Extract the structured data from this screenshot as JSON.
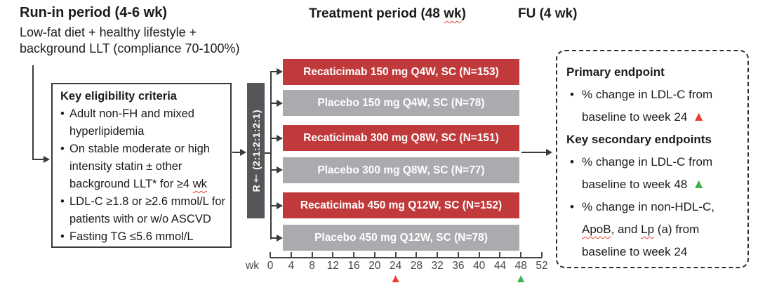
{
  "palette": {
    "arm_active": "#c13a3b",
    "arm_placebo": "#a9abae",
    "randomization": "#555659",
    "marker_red": "#ee3b2e",
    "marker_green": "#3bb54a",
    "line": "#3b3b3d",
    "text": "#1b1b1d",
    "axis_text": "#47474a",
    "squiggle": "#e3432f",
    "bar_text": "#ffffff"
  },
  "icons": {
    "triangle_up": "▲",
    "bullet": "•"
  },
  "header": {
    "runin_title": "Run-in period (4-6 wk)",
    "runin_sub1": "Low-fat diet + healthy lifestyle +",
    "runin_sub2": "background LLT (compliance 70-100%)",
    "treatment_pre": "Treatment period (48 ",
    "treatment_wk": "wk",
    "treatment_post": ")",
    "fu_title": "FU (4 wk)"
  },
  "eligibility": {
    "title": "Key eligibility criteria",
    "rows": [
      {
        "bullet": true,
        "text": "Adult non-FH and mixed"
      },
      {
        "bullet": false,
        "text": "hyperlipidemia"
      },
      {
        "bullet": true,
        "text": "On stable moderate or high"
      },
      {
        "bullet": false,
        "text": "intensity statin ± other"
      },
      {
        "bullet": false,
        "pre": "background LLT* for ≥4 ",
        "wavy": "wk"
      },
      {
        "bullet": true,
        "text": "LDL-C ≥1.8 or ≥2.6 mmol/L for"
      },
      {
        "bullet": false,
        "text": "patients with or w/o ASCVD"
      },
      {
        "bullet": true,
        "text": "Fasting TG ≤5.6 mmol/L"
      }
    ]
  },
  "randomization": {
    "label": "R† (2:1:2:1:2:1)"
  },
  "arms": [
    {
      "label": "Recaticimab 150 mg Q4W, SC (N=153)",
      "type": "active"
    },
    {
      "label": "Placebo 150 mg Q4W, SC (N=78)",
      "type": "placebo"
    },
    {
      "label": "Recaticimab 300 mg Q8W, SC (N=151)",
      "type": "active"
    },
    {
      "label": "Placebo 300 mg Q8W, SC (N=77)",
      "type": "placebo"
    },
    {
      "label": "Recaticimab 450 mg Q12W, SC (N=152)",
      "type": "active"
    },
    {
      "label": "Placebo 450 mg Q12W, SC (N=78)",
      "type": "placebo"
    }
  ],
  "axis": {
    "prefix": "wk",
    "ticks": [
      "0",
      "4",
      "8",
      "12",
      "16",
      "20",
      "24",
      "28",
      "32",
      "36",
      "40",
      "44",
      "48",
      "52"
    ],
    "markers": [
      {
        "week": "24",
        "tick_index": 6,
        "color": "#ee3b2e"
      },
      {
        "week": "48",
        "tick_index": 12,
        "color": "#3bb54a"
      }
    ]
  },
  "endpoints": {
    "primary_title": "Primary endpoint",
    "primary": {
      "l1": "% change in LDL-C from",
      "l2": "baseline to week 24"
    },
    "secondary_title": "Key secondary endpoints",
    "secondary1": {
      "l1": "% change in LDL-C from",
      "l2": "baseline to week 48"
    },
    "secondary2": {
      "l1": "% change in non-HDL-C,",
      "l2_apob": "ApoB",
      "l2_mid": ", and ",
      "l2_lp": "Lp",
      "l2_tail": " (a) from",
      "l3": "baseline to week 24"
    }
  }
}
